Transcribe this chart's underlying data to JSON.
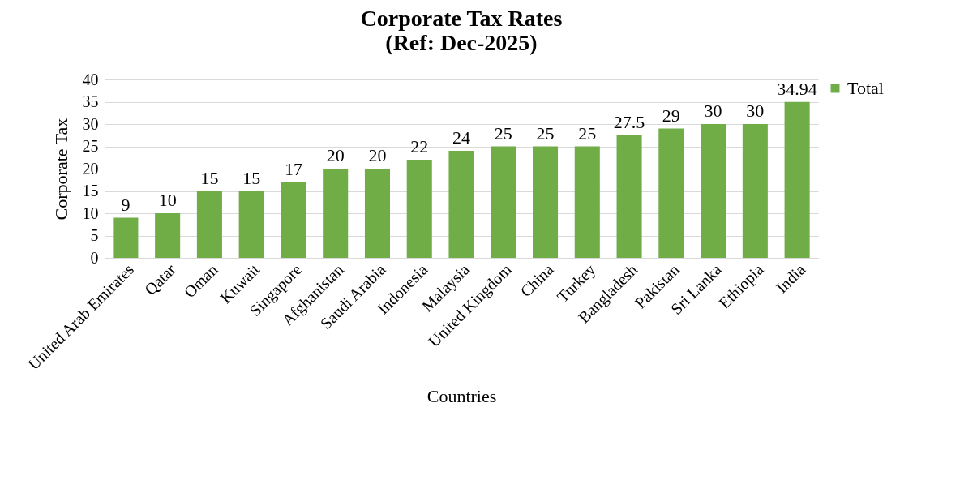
{
  "chart_data": {
    "type": "bar",
    "title": [
      "Corporate Tax Rates",
      "(Ref: Dec-2025)"
    ],
    "xlabel": "Countries",
    "ylabel": "Corporate Tax",
    "categories": [
      "United Arab Emirates",
      "Qatar",
      "Oman",
      "Kuwait",
      "Singapore",
      "Afghanistan",
      "Saudi Arabia",
      "Indonesia",
      "Malaysia",
      "United Kingdom",
      "China",
      "Turkey",
      "Bangladesh",
      "Pakistan",
      "Sri Lanka",
      "Ethiopia",
      "India"
    ],
    "series": [
      {
        "name": "Total",
        "color": "#70ad47",
        "values": [
          9,
          10,
          15,
          15,
          17,
          20,
          20,
          22,
          24,
          25,
          25,
          25,
          27.5,
          29,
          30,
          30,
          34.94
        ]
      }
    ],
    "ylim": [
      0,
      40
    ],
    "yticks": [
      0,
      5,
      10,
      15,
      20,
      25,
      30,
      35,
      40
    ],
    "grid": "y",
    "legend": "right",
    "data_labels": true
  }
}
